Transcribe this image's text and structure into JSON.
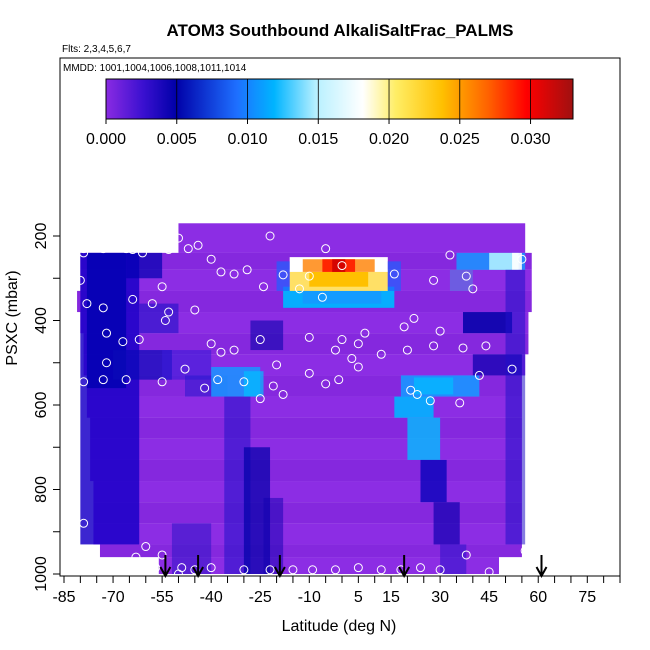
{
  "chart_data": {
    "type": "heatmap",
    "title": "ATOM3 Southbound AlkaliSaltFrac_PALMS",
    "flights_label": "Flts: 2,3,4,5,6,7",
    "dates_label": "MMDD: 1001,1004,1006,1008,1011,1014",
    "xlabel": "Latitude (deg N)",
    "ylabel": "PSXC (mbar)",
    "xlim": [
      -85,
      85
    ],
    "ylim": [
      1000,
      0
    ],
    "x_ticks": [
      -85,
      -70,
      -55,
      -40,
      -25,
      -10,
      5,
      15,
      30,
      45,
      60,
      75
    ],
    "y_ticks": [
      200,
      400,
      600,
      800,
      1000
    ],
    "colorbar": {
      "ticks": [
        "0.000",
        "0.005",
        "0.010",
        "0.015",
        "0.020",
        "0.025",
        "0.030"
      ],
      "range": [
        0,
        0.033
      ],
      "colors": [
        "#8a2be2",
        "#0000a8",
        "#1e90ff",
        "#00bfff",
        "#ffffff",
        "#ffd700",
        "#ff8c00",
        "#ff0000",
        "#a00000"
      ]
    },
    "profile_arrows_lat": [
      -54,
      -44,
      -19,
      19,
      61
    ],
    "colors": {
      "background": "#8a2be2",
      "low": "#0000b4",
      "mid": "#1e90ff",
      "high": "#ffd700",
      "max": "#ff0000"
    }
  }
}
